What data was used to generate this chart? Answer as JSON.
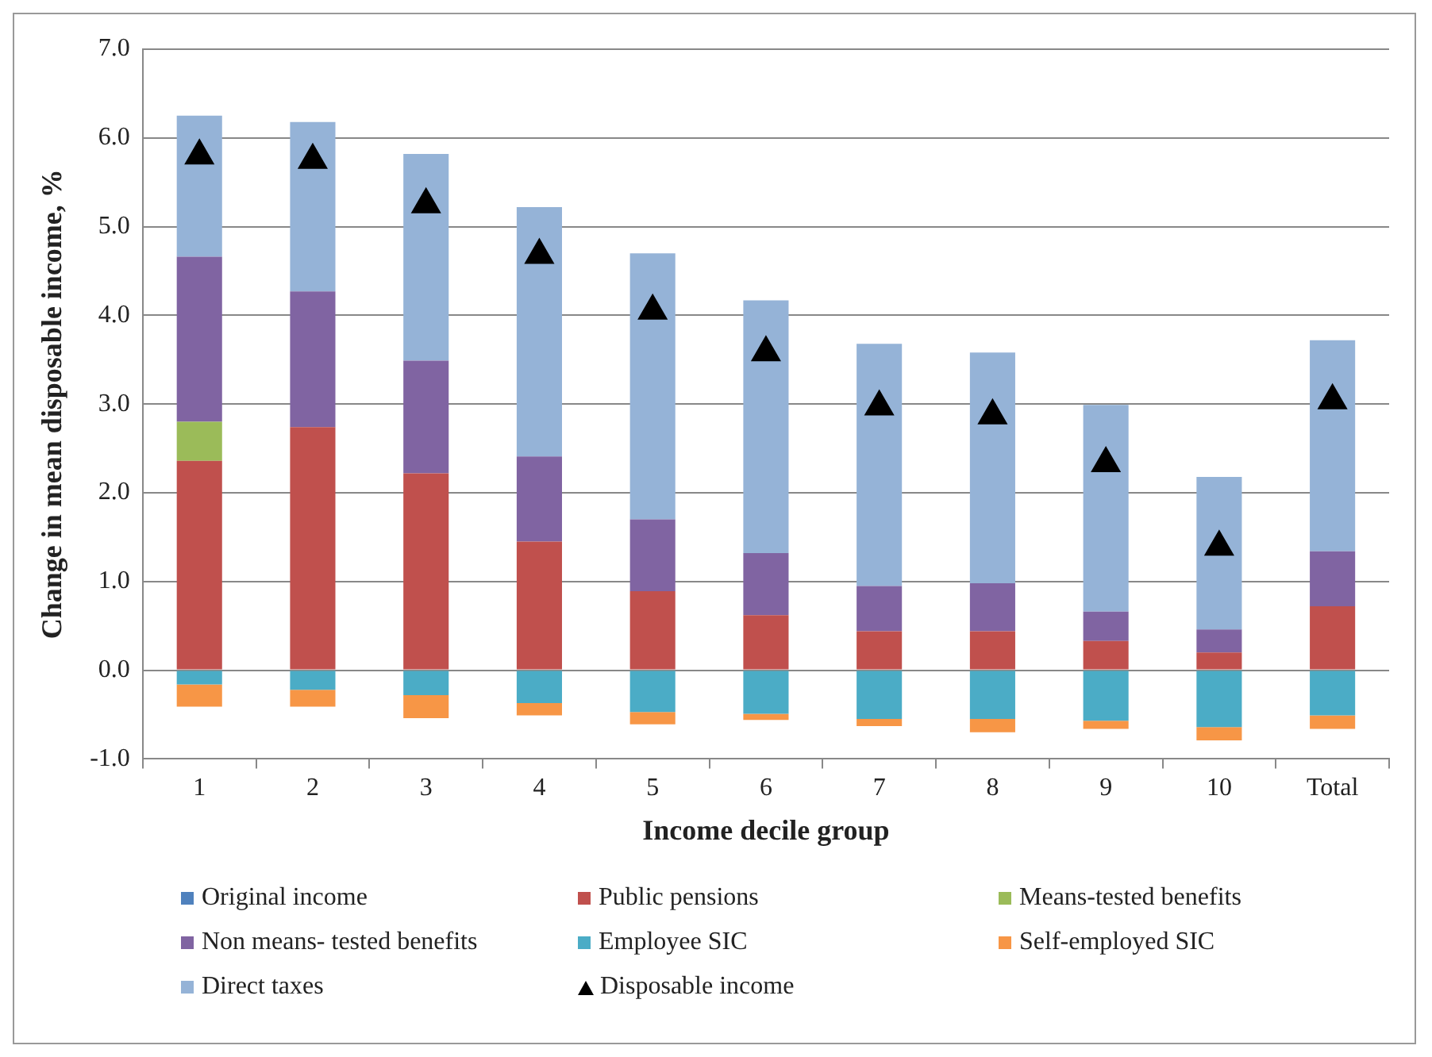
{
  "chart_data": {
    "type": "bar",
    "stacked": true,
    "xlabel": "Income decile group",
    "ylabel": "Change in mean disposable income, %",
    "categories": [
      "1",
      "2",
      "3",
      "4",
      "5",
      "6",
      "7",
      "8",
      "9",
      "10",
      "Total"
    ],
    "ylim": [
      -1,
      7
    ],
    "yticks": [
      {
        "value": -1,
        "label": "-1.0"
      },
      {
        "value": 0,
        "label": "0.0"
      },
      {
        "value": 1,
        "label": "1.0"
      },
      {
        "value": 2,
        "label": "2.0"
      },
      {
        "value": 3,
        "label": "3.0"
      },
      {
        "value": 4,
        "label": "4.0"
      },
      {
        "value": 5,
        "label": "5.0"
      },
      {
        "value": 6,
        "label": "6.0"
      },
      {
        "value": 7,
        "label": "7.0"
      }
    ],
    "grid": "y",
    "legend": "bottom",
    "series": [
      {
        "name": "Original income",
        "color": "#4f81bd",
        "values": [
          0,
          0,
          0,
          0,
          0,
          0,
          0,
          0,
          0,
          0,
          0
        ]
      },
      {
        "name": "Public pensions",
        "color": "#c0504d",
        "values": [
          2.36,
          2.74,
          2.22,
          1.45,
          0.89,
          0.62,
          0.44,
          0.44,
          0.33,
          0.2,
          0.72
        ]
      },
      {
        "name": "Means-tested benefits",
        "color": "#9bbb59",
        "values": [
          0.44,
          0,
          0,
          0,
          0,
          0,
          0,
          0,
          0,
          0,
          0
        ]
      },
      {
        "name": "Non means- tested benefits",
        "color": "#8064a2",
        "values": [
          1.86,
          1.53,
          1.27,
          0.96,
          0.81,
          0.7,
          0.51,
          0.54,
          0.33,
          0.26,
          0.62
        ]
      },
      {
        "name": "Employee SIC",
        "color": "#4bacc6",
        "values": [
          -0.16,
          -0.22,
          -0.28,
          -0.37,
          -0.47,
          -0.49,
          -0.55,
          -0.55,
          -0.57,
          -0.64,
          -0.51
        ]
      },
      {
        "name": "Self-employed SIC",
        "color": "#f79646",
        "values": [
          -0.25,
          -0.19,
          -0.26,
          -0.14,
          -0.14,
          -0.07,
          -0.08,
          -0.15,
          -0.09,
          -0.15,
          -0.15
        ]
      },
      {
        "name": "Direct taxes",
        "color": "#95b3d7",
        "values": [
          1.59,
          1.91,
          2.33,
          2.81,
          3.0,
          2.85,
          2.73,
          2.6,
          2.33,
          1.72,
          2.38
        ]
      },
      {
        "name": "Disposable income",
        "type": "scatter",
        "marker": "triangle",
        "color": "#000000",
        "x": [
          "1",
          "2",
          "3",
          "4",
          "5",
          "6",
          "7",
          "8",
          "9",
          "10",
          "Total"
        ],
        "values": [
          5.8,
          5.75,
          5.25,
          4.68,
          4.05,
          3.58,
          2.97,
          2.87,
          2.33,
          1.39,
          3.04
        ]
      }
    ]
  }
}
